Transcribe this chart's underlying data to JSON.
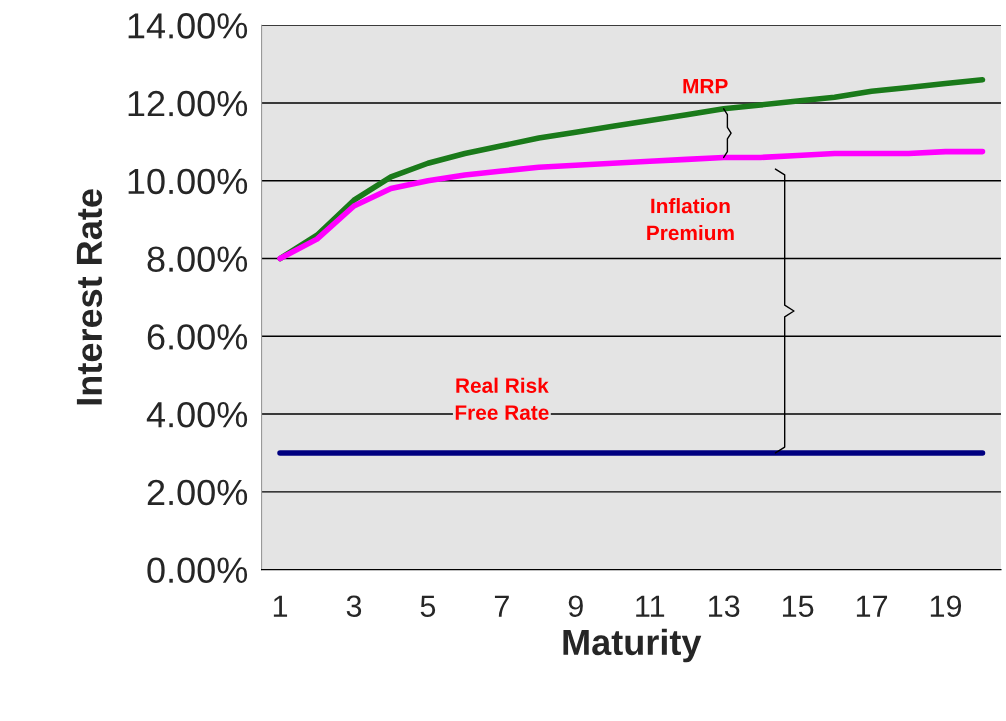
{
  "chart_data": {
    "type": "line",
    "xlabel": "Maturity",
    "ylabel": "Interest Rate",
    "categories": [
      "1",
      null,
      "3",
      null,
      "5",
      null,
      "7",
      null,
      "9",
      null,
      "11",
      null,
      "13",
      null,
      "15",
      null,
      "17",
      null,
      "19",
      null
    ],
    "series": [
      {
        "color": "#1a7a1a",
        "values": [
          8.0,
          8.6,
          9.5,
          10.1,
          10.45,
          10.7,
          10.9,
          11.1,
          11.25,
          11.4,
          11.55,
          11.7,
          11.85,
          11.95,
          12.05,
          12.15,
          12.3,
          12.4,
          12.5,
          12.6
        ]
      },
      {
        "color": "#ff00ff",
        "values": [
          8.0,
          8.5,
          9.35,
          9.8,
          10.0,
          10.15,
          10.25,
          10.35,
          10.4,
          10.45,
          10.5,
          10.55,
          10.6,
          10.6,
          10.65,
          10.7,
          10.7,
          10.7,
          10.75,
          10.75
        ]
      },
      {
        "color": "#000080",
        "values": [
          3.0,
          3.0,
          3.0,
          3.0,
          3.0,
          3.0,
          3.0,
          3.0,
          3.0,
          3.0,
          3.0,
          3.0,
          3.0,
          3.0,
          3.0,
          3.0,
          3.0,
          3.0,
          3.0,
          3.0
        ]
      }
    ],
    "ylim": [
      0,
      14
    ],
    "yticks": [
      {
        "value": 0,
        "label": "0.00%"
      },
      {
        "value": 2,
        "label": "2.00%"
      },
      {
        "value": 4,
        "label": "4.00%"
      },
      {
        "value": 6,
        "label": "6.00%"
      },
      {
        "value": 8,
        "label": "8.00%"
      },
      {
        "value": 10,
        "label": "10.00%"
      },
      {
        "value": 12,
        "label": "12.00%"
      },
      {
        "value": 14,
        "label": "14.00%"
      }
    ],
    "grid": "y",
    "annotations": [
      {
        "text": "MRP",
        "x": "13",
        "y": 11.85
      },
      "Inflation\nPremium",
      "Real Risk\nFree Rate"
    ]
  }
}
